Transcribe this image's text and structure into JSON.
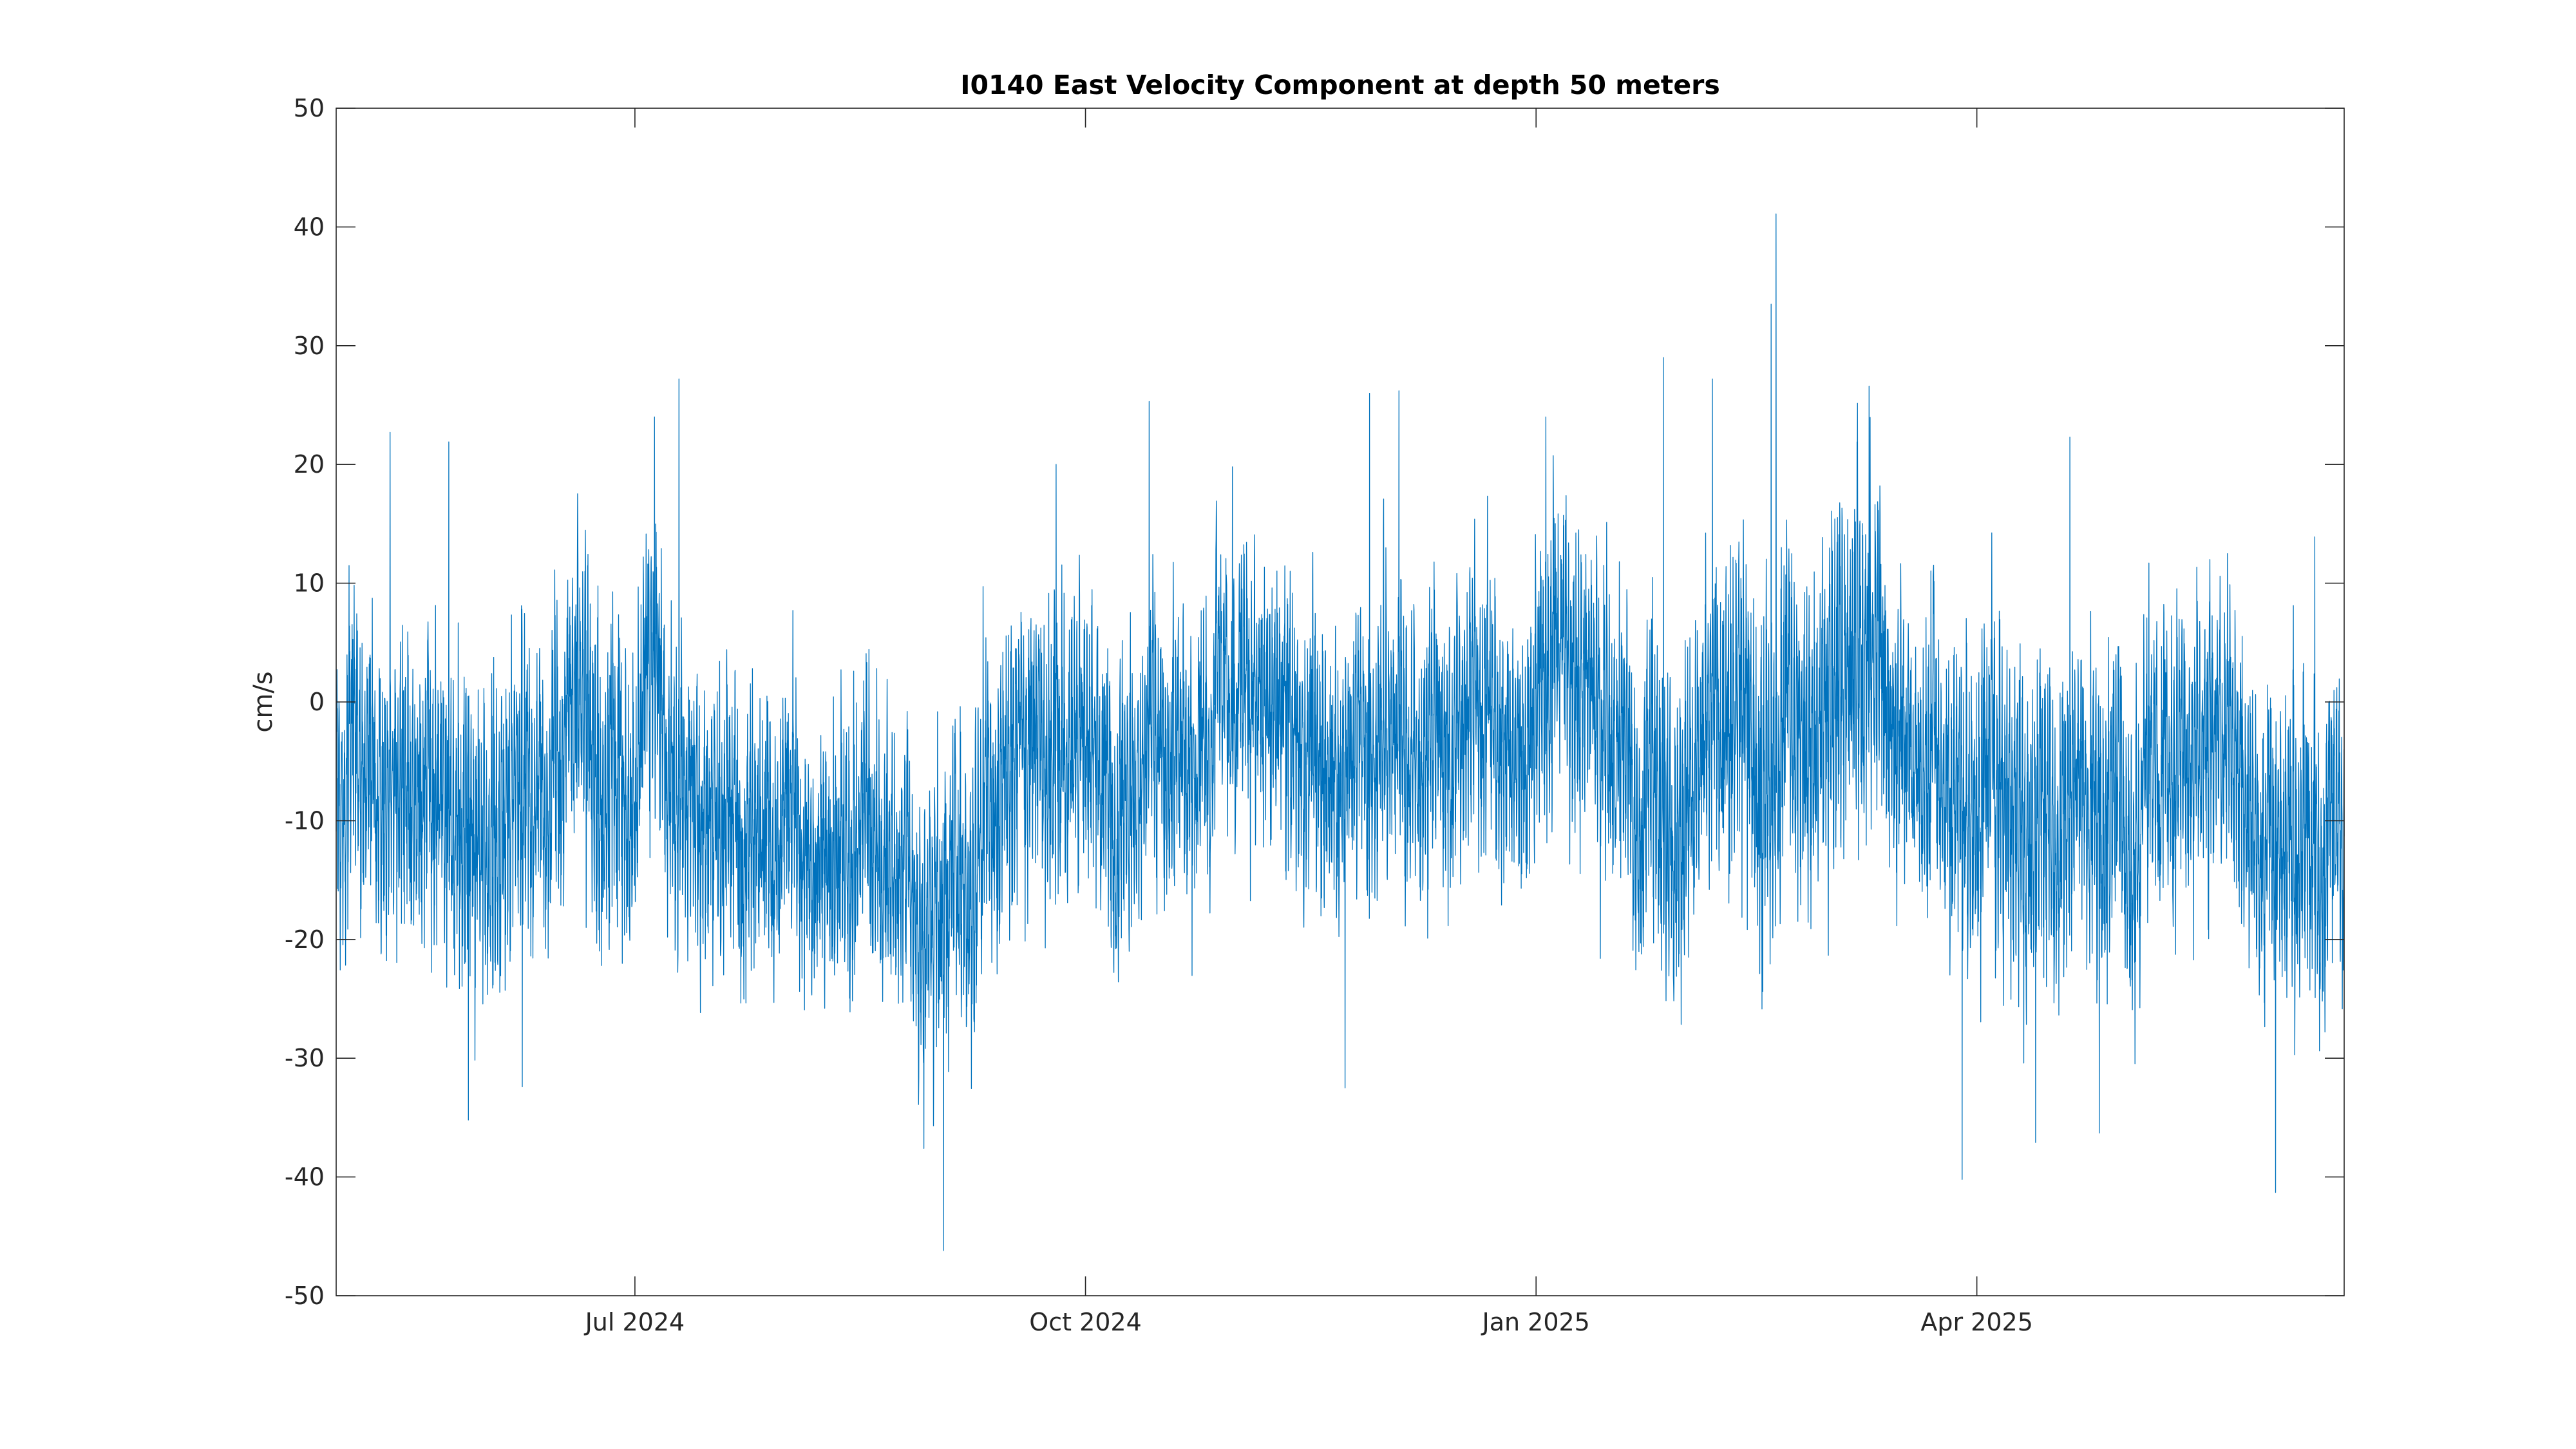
{
  "chart_data": {
    "type": "line",
    "title": "I0140 East Velocity Component at depth 50 meters",
    "xlabel": "",
    "ylabel": "cm/s",
    "x_range": [
      "2024-05-01",
      "2025-06-15"
    ],
    "ylim": [
      -50,
      50
    ],
    "yticks": [
      50,
      40,
      30,
      20,
      10,
      0,
      -10,
      -20,
      -30,
      -40,
      -50
    ],
    "ytick_labels": [
      "50",
      "40",
      "30",
      "20",
      "10",
      "0",
      "-10",
      "-20",
      "-30",
      "-40",
      "-50"
    ],
    "xticks": [
      "2024-07-01",
      "2024-10-01",
      "2025-01-01",
      "2025-04-01"
    ],
    "xtick_labels": [
      "Jul 2024",
      "Oct 2024",
      "Jan 2025",
      "Apr 2025"
    ],
    "grid": false,
    "line_color": "#0072BD",
    "series": [
      {
        "x": [
          "2024-05-01",
          "2024-05-08",
          "2024-05-15",
          "2024-05-22",
          "2024-05-29",
          "2024-06-05",
          "2024-06-12",
          "2024-06-19",
          "2024-06-26",
          "2024-07-03",
          "2024-07-10",
          "2024-07-17",
          "2024-07-24",
          "2024-07-31",
          "2024-08-07",
          "2024-08-14",
          "2024-08-21",
          "2024-08-28",
          "2024-09-04",
          "2024-09-11",
          "2024-09-18",
          "2024-09-25",
          "2024-10-02",
          "2024-10-09",
          "2024-10-16",
          "2024-10-23",
          "2024-10-30",
          "2024-11-06",
          "2024-11-13",
          "2024-11-20",
          "2024-11-27",
          "2024-12-04",
          "2024-12-11",
          "2024-12-18",
          "2024-12-25",
          "2025-01-01",
          "2025-01-08",
          "2025-01-15",
          "2025-01-22",
          "2025-01-29",
          "2025-02-05",
          "2025-02-12",
          "2025-02-19",
          "2025-02-26",
          "2025-03-05",
          "2025-03-12",
          "2025-03-19",
          "2025-03-26",
          "2025-04-02",
          "2025-04-09",
          "2025-04-16",
          "2025-04-23",
          "2025-04-30",
          "2025-05-07",
          "2025-05-14",
          "2025-05-21",
          "2025-05-28",
          "2025-06-04",
          "2025-06-11"
        ],
        "mean": [
          -8,
          -6,
          -5,
          -7,
          -9,
          -10,
          -8,
          -5,
          -6,
          -3,
          -5,
          -7,
          -9,
          -12,
          -14,
          -13,
          -12,
          -15,
          -16,
          -10,
          -6,
          -5,
          -6,
          -8,
          -4,
          -2,
          0,
          1,
          -2,
          -6,
          -5,
          -3,
          -4,
          -2,
          -5,
          -3,
          2,
          0,
          -6,
          -7,
          -4,
          -2,
          -6,
          -5,
          2,
          6,
          -6,
          -8,
          -7,
          -9,
          -11,
          -8,
          -9,
          -7,
          -5,
          -4,
          -8,
          -12,
          -9
        ],
        "amp": [
          14,
          13,
          14,
          15,
          15,
          14,
          13,
          14,
          15,
          14,
          13,
          12,
          12,
          13,
          12,
          12,
          13,
          13,
          13,
          13,
          13,
          13,
          13,
          13,
          12,
          12,
          11,
          12,
          13,
          12,
          12,
          13,
          13,
          12,
          12,
          13,
          14,
          13,
          13,
          14,
          14,
          15,
          15,
          15,
          16,
          15,
          13,
          13,
          13,
          14,
          14,
          14,
          14,
          13,
          13,
          13,
          13,
          14,
          13
        ],
        "peaks": [
          {
            "x": "2024-05-12",
            "y": 22.7
          },
          {
            "x": "2024-05-24",
            "y": 21.9
          },
          {
            "x": "2024-05-28",
            "y": -35.2
          },
          {
            "x": "2024-06-08",
            "y": -32.4
          },
          {
            "x": "2024-07-05",
            "y": 24.0
          },
          {
            "x": "2024-07-10",
            "y": 27.2
          },
          {
            "x": "2024-09-02",
            "y": -46.2
          },
          {
            "x": "2024-08-29",
            "y": -37.6
          },
          {
            "x": "2024-09-25",
            "y": 20.0
          },
          {
            "x": "2024-10-14",
            "y": 25.3
          },
          {
            "x": "2024-10-31",
            "y": 19.8
          },
          {
            "x": "2024-11-28",
            "y": 26.0
          },
          {
            "x": "2024-12-04",
            "y": 26.2
          },
          {
            "x": "2024-11-23",
            "y": -32.5
          },
          {
            "x": "2025-01-03",
            "y": 24.0
          },
          {
            "x": "2025-01-27",
            "y": 29.0
          },
          {
            "x": "2025-02-06",
            "y": 27.2
          },
          {
            "x": "2025-02-19",
            "y": 41.1
          },
          {
            "x": "2025-02-18",
            "y": 33.5
          },
          {
            "x": "2025-03-10",
            "y": 26.6
          },
          {
            "x": "2025-03-29",
            "y": -40.2
          },
          {
            "x": "2025-04-13",
            "y": -37.1
          },
          {
            "x": "2025-04-20",
            "y": 22.3
          },
          {
            "x": "2025-04-26",
            "y": -36.3
          },
          {
            "x": "2025-06-01",
            "y": -41.3
          },
          {
            "x": "2025-06-09",
            "y": 13.9
          }
        ]
      }
    ]
  }
}
